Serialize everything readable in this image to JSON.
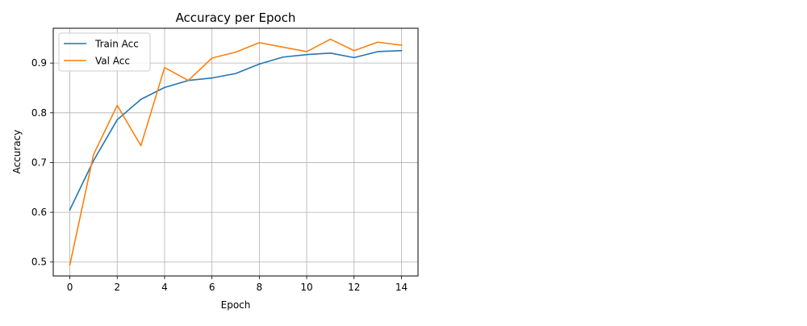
{
  "chart_data": {
    "type": "line",
    "title": "Accuracy per Epoch",
    "xlabel": "Epoch",
    "ylabel": "Accuracy",
    "xlim": [
      -0.7,
      14.7
    ],
    "ylim": [
      0.472,
      0.97
    ],
    "xticks": [
      0,
      2,
      4,
      6,
      8,
      10,
      12,
      14
    ],
    "yticks": [
      0.5,
      0.6,
      0.7,
      0.8,
      0.9
    ],
    "ytick_labels": [
      "0.5",
      "0.6",
      "0.7",
      "0.8",
      "0.9"
    ],
    "grid": true,
    "legend_position": "top-left",
    "x": [
      0,
      1,
      2,
      3,
      4,
      5,
      6,
      7,
      8,
      9,
      10,
      11,
      12,
      13,
      14
    ],
    "series": [
      {
        "name": "Train Acc",
        "color": "#1f77b4",
        "values": [
          0.605,
          0.704,
          0.786,
          0.827,
          0.851,
          0.865,
          0.87,
          0.879,
          0.898,
          0.912,
          0.917,
          0.92,
          0.911,
          0.923,
          0.925
        ]
      },
      {
        "name": "Val Acc",
        "color": "#ff7f0e",
        "values": [
          0.494,
          0.716,
          0.815,
          0.734,
          0.891,
          0.865,
          0.91,
          0.922,
          0.941,
          0.932,
          0.923,
          0.948,
          0.925,
          0.942,
          0.936
        ]
      }
    ]
  }
}
